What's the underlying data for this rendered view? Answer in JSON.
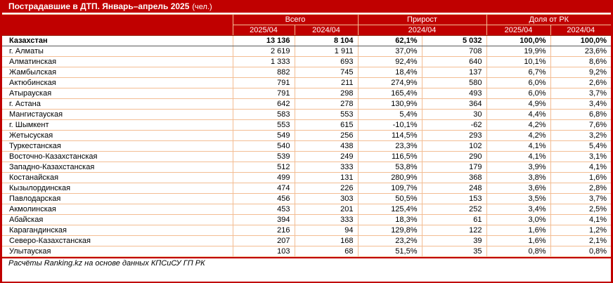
{
  "title": {
    "main": "Пострадавшие в ДТП. Январь–апрель 2025",
    "unit": "(чел.)"
  },
  "chart_data": {
    "type": "table",
    "title": "Пострадавшие в ДТП. Январь–апрель 2025 (чел.)",
    "column_groups": [
      {
        "label": "Всего",
        "columns": [
          "2025/04",
          "2024/04"
        ]
      },
      {
        "label": "Прирост",
        "columns": [
          "2024/04 (%)",
          "2024/04 (абс.)"
        ]
      },
      {
        "label": "Доля от РК",
        "columns": [
          "2025/04",
          "2024/04"
        ]
      }
    ],
    "sub_headers": [
      "2025/04",
      "2024/04",
      "2024/04",
      "2025/04",
      "2024/04"
    ],
    "rows": [
      [
        "Казахстан",
        "13 136",
        "8 104",
        "62,1%",
        "5 032",
        "100,0%",
        "100,0%"
      ],
      [
        "г. Алматы",
        "2 619",
        "1 911",
        "37,0%",
        "708",
        "19,9%",
        "23,6%"
      ],
      [
        "Алматинская",
        "1 333",
        "693",
        "92,4%",
        "640",
        "10,1%",
        "8,6%"
      ],
      [
        "Жамбылская",
        "882",
        "745",
        "18,4%",
        "137",
        "6,7%",
        "9,2%"
      ],
      [
        "Актюбинская",
        "791",
        "211",
        "274,9%",
        "580",
        "6,0%",
        "2,6%"
      ],
      [
        "Атырауская",
        "791",
        "298",
        "165,4%",
        "493",
        "6,0%",
        "3,7%"
      ],
      [
        "г. Астана",
        "642",
        "278",
        "130,9%",
        "364",
        "4,9%",
        "3,4%"
      ],
      [
        "Мангистауская",
        "583",
        "553",
        "5,4%",
        "30",
        "4,4%",
        "6,8%"
      ],
      [
        "г. Шымкент",
        "553",
        "615",
        "-10,1%",
        "-62",
        "4,2%",
        "7,6%"
      ],
      [
        "Жетысуская",
        "549",
        "256",
        "114,5%",
        "293",
        "4,2%",
        "3,2%"
      ],
      [
        "Туркестанская",
        "540",
        "438",
        "23,3%",
        "102",
        "4,1%",
        "5,4%"
      ],
      [
        "Восточно-Казахстанская",
        "539",
        "249",
        "116,5%",
        "290",
        "4,1%",
        "3,1%"
      ],
      [
        "Западно-Казахстанская",
        "512",
        "333",
        "53,8%",
        "179",
        "3,9%",
        "4,1%"
      ],
      [
        "Костанайская",
        "499",
        "131",
        "280,9%",
        "368",
        "3,8%",
        "1,6%"
      ],
      [
        "Кызылординская",
        "474",
        "226",
        "109,7%",
        "248",
        "3,6%",
        "2,8%"
      ],
      [
        "Павлодарская",
        "456",
        "303",
        "50,5%",
        "153",
        "3,5%",
        "3,7%"
      ],
      [
        "Акмолинская",
        "453",
        "201",
        "125,4%",
        "252",
        "3,4%",
        "2,5%"
      ],
      [
        "Абайская",
        "394",
        "333",
        "18,3%",
        "61",
        "3,0%",
        "4,1%"
      ],
      [
        "Карагандинская",
        "216",
        "94",
        "129,8%",
        "122",
        "1,6%",
        "1,2%"
      ],
      [
        "Северо-Казахстанская",
        "207",
        "168",
        "23,2%",
        "39",
        "1,6%",
        "2,1%"
      ],
      [
        "Улытауская",
        "103",
        "68",
        "51,5%",
        "35",
        "0,8%",
        "0,8%"
      ]
    ],
    "source": "Расчёты Ranking.kz на основе данных КПСиСУ ГП РК"
  },
  "footer": {
    "source_note": "Расчёты Ranking.kz на основе данных КПСиСУ ГП РК"
  },
  "colors": {
    "accent": "#C00000",
    "cell_border": "#F3BD93"
  }
}
